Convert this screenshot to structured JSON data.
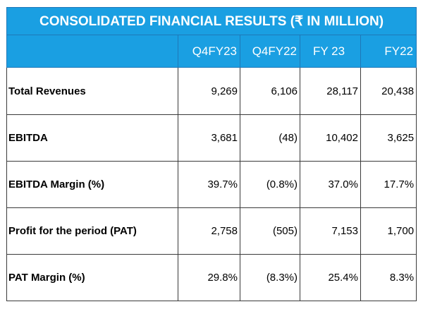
{
  "title": "CONSOLIDATED FINANCIAL RESULTS (₹ IN MILLION)",
  "columns": [
    "Q4FY23",
    "Q4FY22",
    "FY 23",
    "FY22"
  ],
  "rows": [
    {
      "label": "Total Revenues",
      "values": [
        "9,269",
        "6,106",
        "28,117",
        "20,438"
      ]
    },
    {
      "label": "EBITDA",
      "values": [
        "3,681",
        "(48)",
        "10,402",
        "3,625"
      ]
    },
    {
      "label": "EBITDA Margin (%)",
      "values": [
        "39.7%",
        "(0.8%)",
        "37.0%",
        "17.7%"
      ]
    },
    {
      "label": "Profit for the period (PAT)",
      "values": [
        "2,758",
        "(505)",
        "7,153",
        "1,700"
      ]
    },
    {
      "label": "PAT Margin (%)",
      "values": [
        "29.8%",
        "(8.3%)",
        "25.4%",
        "8.3%"
      ]
    }
  ],
  "colors": {
    "header_bg": "#1a9fe2",
    "header_text": "#ffffff",
    "border": "#3a3a3a"
  }
}
